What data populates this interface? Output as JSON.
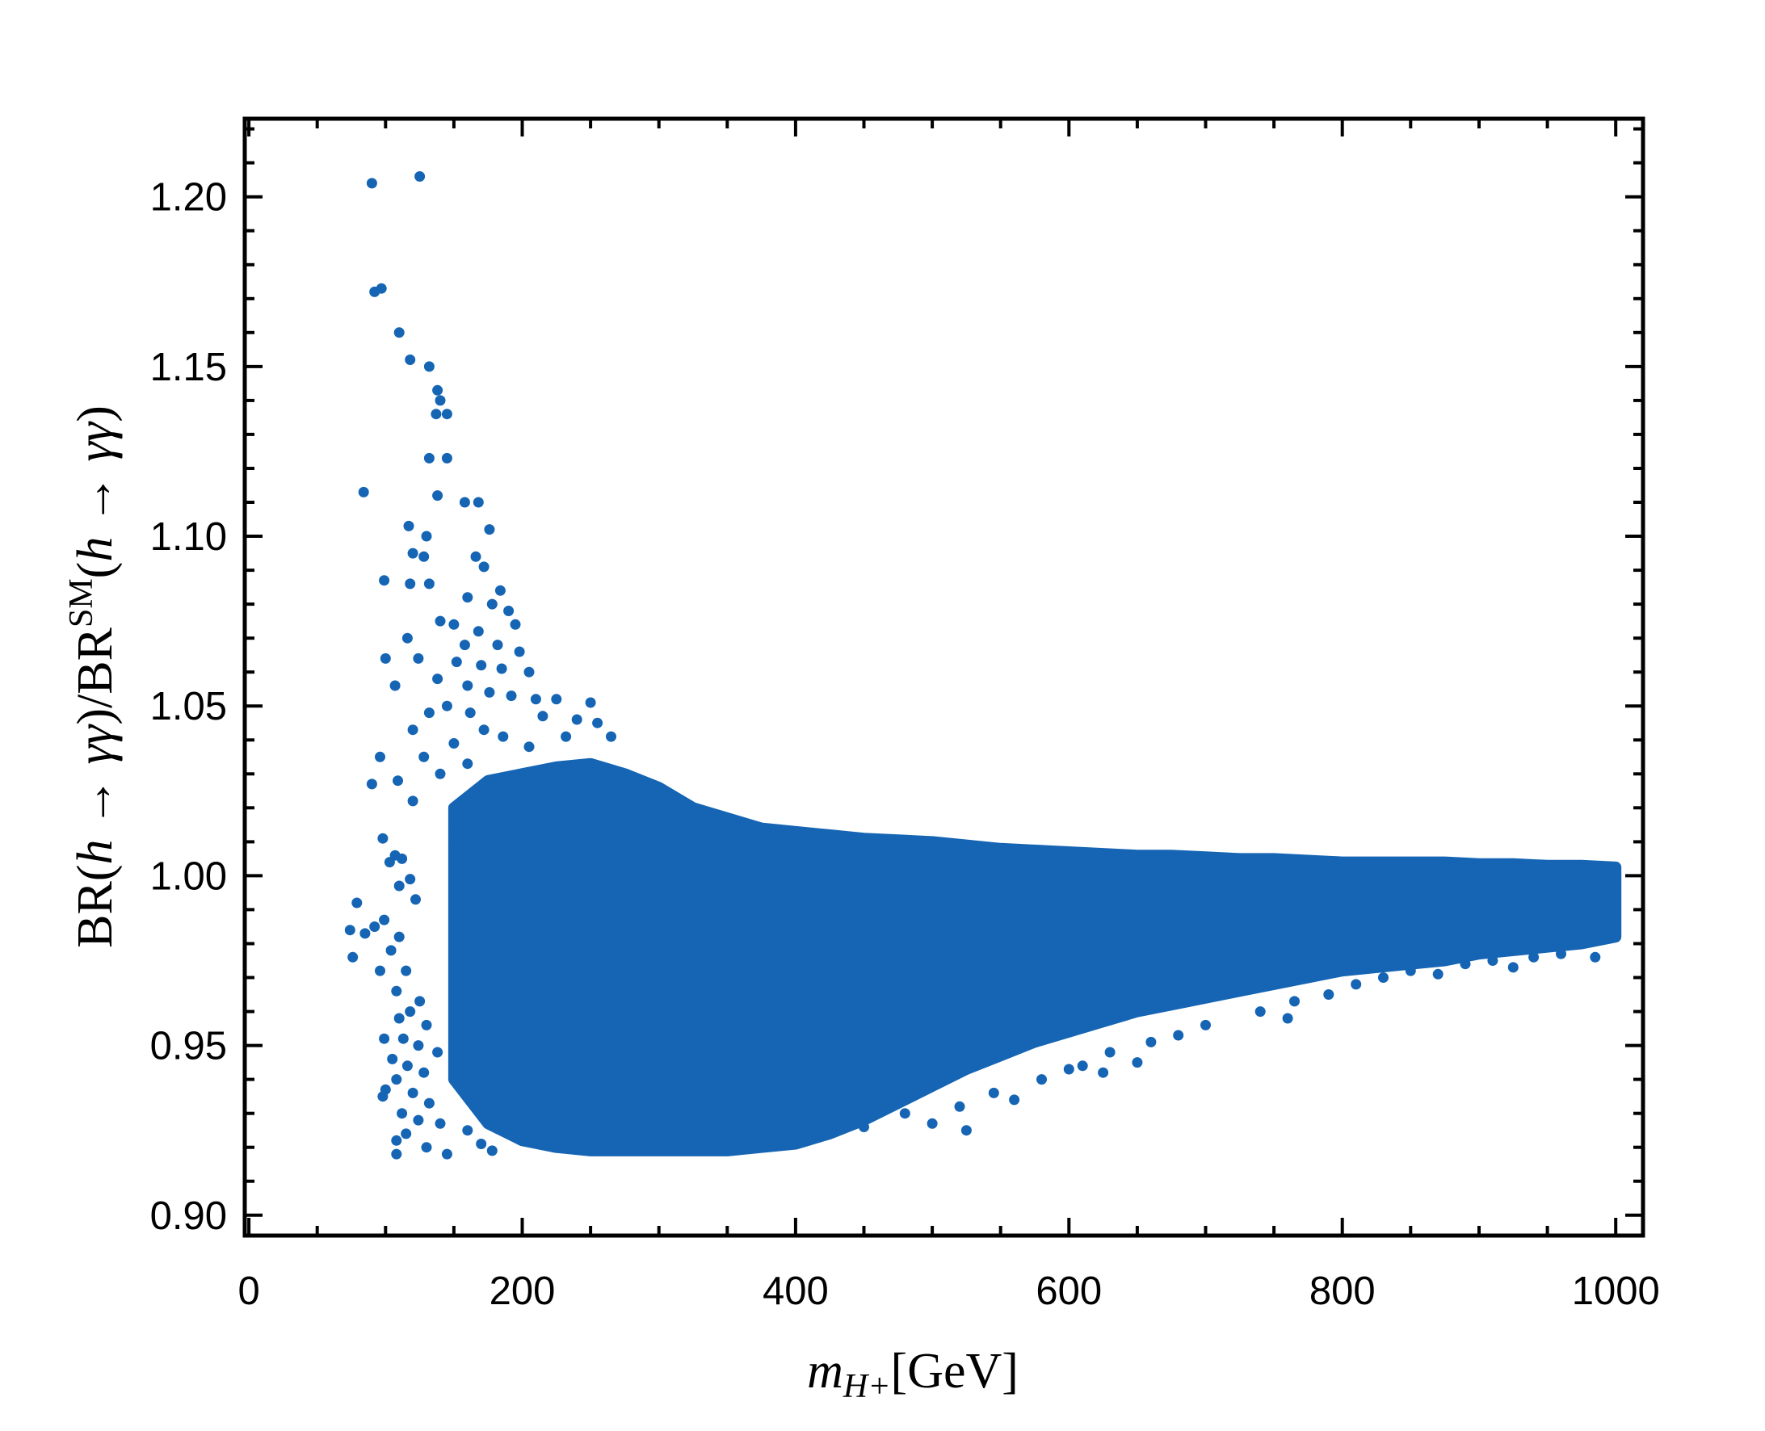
{
  "chart_data": {
    "type": "scatter",
    "xlabel": {
      "main": "m",
      "sub": "H+",
      "unit": "[GeV]"
    },
    "ylabel": {
      "prefix": "BR(",
      "h1": "h",
      "arrow1": " → ",
      "gg1": "γγ",
      "mid": ")/BR",
      "sup": "SM",
      "open2": "(",
      "h2": "h",
      "arrow2": " → ",
      "gg2": "γγ",
      "close": ")"
    },
    "xlim": [
      -3,
      1020
    ],
    "ylim": [
      0.894,
      1.223
    ],
    "x_ticks": [
      0,
      200,
      400,
      600,
      800,
      1000
    ],
    "x_tick_labels": [
      "0",
      "200",
      "400",
      "600",
      "800",
      "1000"
    ],
    "y_ticks": [
      0.9,
      0.95,
      1.0,
      1.05,
      1.1,
      1.15,
      1.2
    ],
    "y_tick_labels": [
      "0.90",
      "0.95",
      "1.00",
      "1.05",
      "1.10",
      "1.15",
      "1.20"
    ],
    "grid": false,
    "marker_color": "#1565B4",
    "dense_region": {
      "x": [
        150,
        175,
        200,
        225,
        250,
        275,
        300,
        325,
        350,
        375,
        400,
        425,
        450,
        475,
        500,
        525,
        550,
        575,
        600,
        625,
        650,
        675,
        700,
        725,
        750,
        775,
        800,
        825,
        850,
        875,
        900,
        925,
        950,
        975,
        1000
      ],
      "y_upper": [
        1.02,
        1.028,
        1.03,
        1.032,
        1.033,
        1.03,
        1.026,
        1.02,
        1.017,
        1.014,
        1.013,
        1.012,
        1.011,
        1.0105,
        1.01,
        1.009,
        1.008,
        1.0075,
        1.007,
        1.0065,
        1.006,
        1.006,
        1.0055,
        1.005,
        1.005,
        1.0045,
        1.004,
        1.004,
        1.004,
        1.004,
        1.0035,
        1.0035,
        1.003,
        1.003,
        1.0025
      ],
      "y_lower": [
        0.94,
        0.927,
        0.922,
        0.92,
        0.919,
        0.919,
        0.919,
        0.919,
        0.919,
        0.92,
        0.921,
        0.924,
        0.928,
        0.933,
        0.938,
        0.943,
        0.947,
        0.951,
        0.954,
        0.957,
        0.96,
        0.962,
        0.964,
        0.966,
        0.968,
        0.97,
        0.972,
        0.973,
        0.974,
        0.975,
        0.977,
        0.978,
        0.979,
        0.98,
        0.982
      ]
    },
    "points": [
      [
        125,
        1.206
      ],
      [
        90,
        1.204
      ],
      [
        97,
        1.173
      ],
      [
        92,
        1.172
      ],
      [
        110,
        1.16
      ],
      [
        118,
        1.152
      ],
      [
        132,
        1.15
      ],
      [
        138,
        1.143
      ],
      [
        140,
        1.14
      ],
      [
        137,
        1.136
      ],
      [
        145,
        1.136
      ],
      [
        132,
        1.123
      ],
      [
        145,
        1.123
      ],
      [
        84,
        1.113
      ],
      [
        138,
        1.112
      ],
      [
        158,
        1.11
      ],
      [
        168,
        1.11
      ],
      [
        117,
        1.103
      ],
      [
        130,
        1.1
      ],
      [
        176,
        1.102
      ],
      [
        120,
        1.095
      ],
      [
        128,
        1.094
      ],
      [
        166,
        1.094
      ],
      [
        172,
        1.091
      ],
      [
        99,
        1.087
      ],
      [
        118,
        1.086
      ],
      [
        132,
        1.086
      ],
      [
        184,
        1.084
      ],
      [
        160,
        1.082
      ],
      [
        178,
        1.08
      ],
      [
        190,
        1.078
      ],
      [
        140,
        1.075
      ],
      [
        150,
        1.074
      ],
      [
        195,
        1.074
      ],
      [
        168,
        1.072
      ],
      [
        116,
        1.07
      ],
      [
        158,
        1.068
      ],
      [
        182,
        1.068
      ],
      [
        198,
        1.066
      ],
      [
        100,
        1.064
      ],
      [
        124,
        1.064
      ],
      [
        152,
        1.063
      ],
      [
        170,
        1.062
      ],
      [
        185,
        1.061
      ],
      [
        205,
        1.06
      ],
      [
        138,
        1.058
      ],
      [
        160,
        1.056
      ],
      [
        107,
        1.056
      ],
      [
        176,
        1.054
      ],
      [
        192,
        1.053
      ],
      [
        210,
        1.052
      ],
      [
        225,
        1.052
      ],
      [
        250,
        1.051
      ],
      [
        145,
        1.05
      ],
      [
        162,
        1.048
      ],
      [
        132,
        1.048
      ],
      [
        215,
        1.047
      ],
      [
        240,
        1.046
      ],
      [
        255,
        1.045
      ],
      [
        120,
        1.043
      ],
      [
        172,
        1.043
      ],
      [
        186,
        1.041
      ],
      [
        232,
        1.041
      ],
      [
        265,
        1.041
      ],
      [
        150,
        1.039
      ],
      [
        205,
        1.038
      ],
      [
        96,
        1.035
      ],
      [
        128,
        1.035
      ],
      [
        160,
        1.033
      ],
      [
        90,
        1.027
      ],
      [
        109,
        1.028
      ],
      [
        140,
        1.03
      ],
      [
        120,
        1.022
      ],
      [
        98,
        1.011
      ],
      [
        150,
        1.012
      ],
      [
        107,
        1.006
      ],
      [
        112,
        1.005
      ],
      [
        103,
        1.004
      ],
      [
        118,
        0.999
      ],
      [
        110,
        0.997
      ],
      [
        122,
        0.993
      ],
      [
        79,
        0.992
      ],
      [
        99,
        0.987
      ],
      [
        74,
        0.984
      ],
      [
        85,
        0.983
      ],
      [
        92,
        0.985
      ],
      [
        110,
        0.982
      ],
      [
        76,
        0.976
      ],
      [
        104,
        0.978
      ],
      [
        96,
        0.972
      ],
      [
        115,
        0.972
      ],
      [
        108,
        0.966
      ],
      [
        125,
        0.963
      ],
      [
        118,
        0.96
      ],
      [
        110,
        0.958
      ],
      [
        130,
        0.956
      ],
      [
        99,
        0.952
      ],
      [
        113,
        0.952
      ],
      [
        124,
        0.95
      ],
      [
        138,
        0.948
      ],
      [
        105,
        0.946
      ],
      [
        116,
        0.944
      ],
      [
        128,
        0.942
      ],
      [
        108,
        0.94
      ],
      [
        100,
        0.937
      ],
      [
        120,
        0.936
      ],
      [
        98,
        0.935
      ],
      [
        132,
        0.933
      ],
      [
        112,
        0.93
      ],
      [
        124,
        0.928
      ],
      [
        140,
        0.927
      ],
      [
        108,
        0.922
      ],
      [
        115,
        0.924
      ],
      [
        108,
        0.918
      ],
      [
        130,
        0.92
      ],
      [
        145,
        0.918
      ],
      [
        160,
        0.925
      ],
      [
        170,
        0.921
      ],
      [
        178,
        0.919
      ],
      [
        450,
        0.926
      ],
      [
        480,
        0.93
      ],
      [
        500,
        0.927
      ],
      [
        525,
        0.925
      ],
      [
        520,
        0.932
      ],
      [
        545,
        0.936
      ],
      [
        560,
        0.934
      ],
      [
        580,
        0.94
      ],
      [
        600,
        0.943
      ],
      [
        610,
        0.944
      ],
      [
        625,
        0.942
      ],
      [
        630,
        0.948
      ],
      [
        650,
        0.945
      ],
      [
        660,
        0.951
      ],
      [
        680,
        0.953
      ],
      [
        700,
        0.956
      ],
      [
        740,
        0.96
      ],
      [
        760,
        0.958
      ],
      [
        765,
        0.963
      ],
      [
        790,
        0.965
      ],
      [
        810,
        0.968
      ],
      [
        830,
        0.97
      ],
      [
        850,
        0.972
      ],
      [
        870,
        0.971
      ],
      [
        890,
        0.974
      ],
      [
        910,
        0.975
      ],
      [
        925,
        0.973
      ],
      [
        940,
        0.976
      ],
      [
        960,
        0.977
      ],
      [
        985,
        0.976
      ]
    ]
  }
}
